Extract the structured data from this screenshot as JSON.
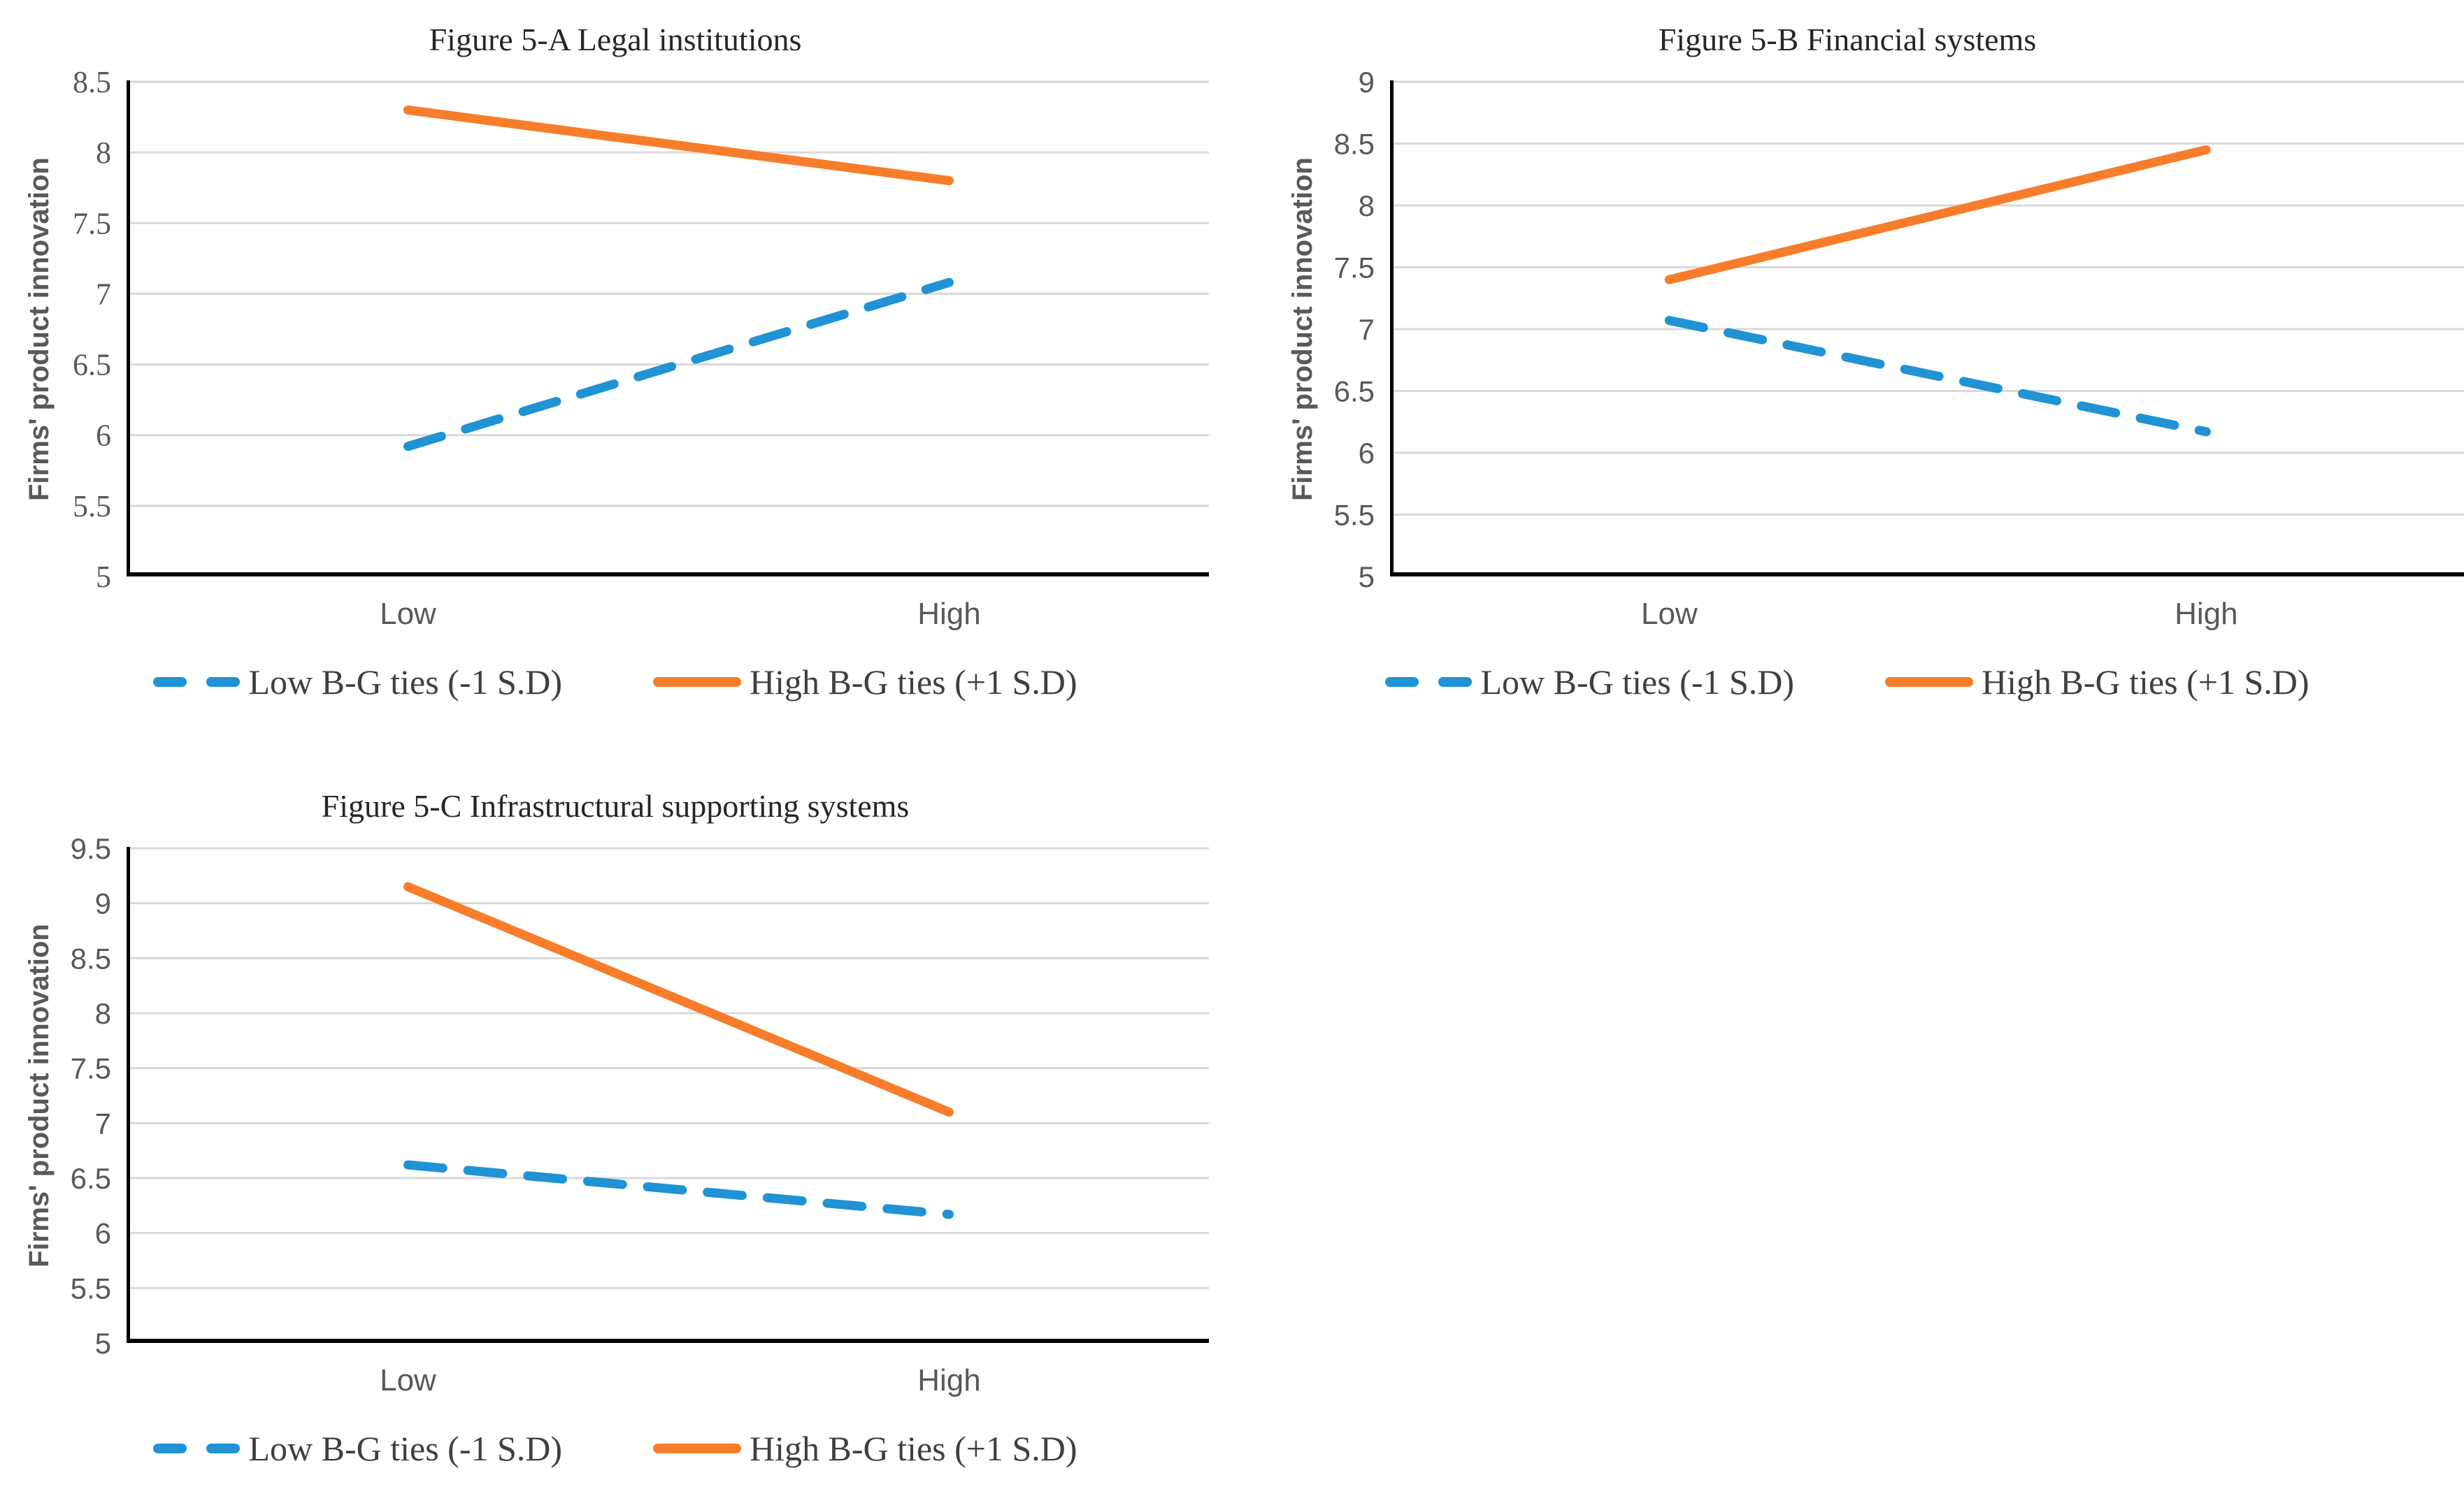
{
  "colors": {
    "low_series": "#1f93d4",
    "high_series": "#f87d2b",
    "gridline": "#d9d9d9",
    "axis": "#000000",
    "tick_text": "#595959",
    "title_text": "#262626",
    "legend_text": "#3f3f3f"
  },
  "chart_data": [
    {
      "type": "line",
      "title": "Figure 5-A Legal institutions",
      "ylabel": "Firms' product innovation",
      "xlabel": "",
      "categories": [
        "Low",
        "High"
      ],
      "ylim": [
        5,
        8.5
      ],
      "yticks": [
        5,
        5.5,
        6,
        6.5,
        7,
        7.5,
        8,
        8.5
      ],
      "grid": true,
      "legend_position": "bottom",
      "series": [
        {
          "name": "Low B-G ties (-1 S.D)",
          "style": "dashed",
          "color_key": "low_series",
          "values": [
            5.92,
            7.08
          ]
        },
        {
          "name": "High B-G ties (+1 S.D)",
          "style": "solid",
          "color_key": "high_series",
          "values": [
            8.3,
            7.8
          ]
        }
      ]
    },
    {
      "type": "line",
      "title": "Figure 5-B Financial systems",
      "ylabel": "Firms' product innovation",
      "xlabel": "",
      "categories": [
        "Low",
        "High"
      ],
      "ylim": [
        5,
        9
      ],
      "yticks": [
        5,
        5.5,
        6,
        6.5,
        7,
        7.5,
        8,
        8.5,
        9
      ],
      "grid": true,
      "legend_position": "bottom",
      "series": [
        {
          "name": "Low B-G ties (-1 S.D)",
          "style": "dashed",
          "color_key": "low_series",
          "values": [
            7.07,
            6.17
          ]
        },
        {
          "name": "High B-G ties (+1 S.D)",
          "style": "solid",
          "color_key": "high_series",
          "values": [
            7.4,
            8.45
          ]
        }
      ]
    },
    {
      "type": "line",
      "title": "Figure 5-C Infrastructural supporting systems",
      "ylabel": "Firms' product innovation",
      "xlabel": "",
      "categories": [
        "Low",
        "High"
      ],
      "ylim": [
        5,
        9.5
      ],
      "yticks": [
        5,
        5.5,
        6,
        6.5,
        7,
        7.5,
        8,
        8.5,
        9,
        9.5
      ],
      "grid": true,
      "legend_position": "bottom",
      "series": [
        {
          "name": "Low B-G ties (-1 S.D)",
          "style": "dashed",
          "color_key": "low_series",
          "values": [
            6.62,
            6.17
          ]
        },
        {
          "name": "High B-G ties (+1 S.D)",
          "style": "solid",
          "color_key": "high_series",
          "values": [
            9.15,
            7.1
          ]
        }
      ]
    }
  ]
}
